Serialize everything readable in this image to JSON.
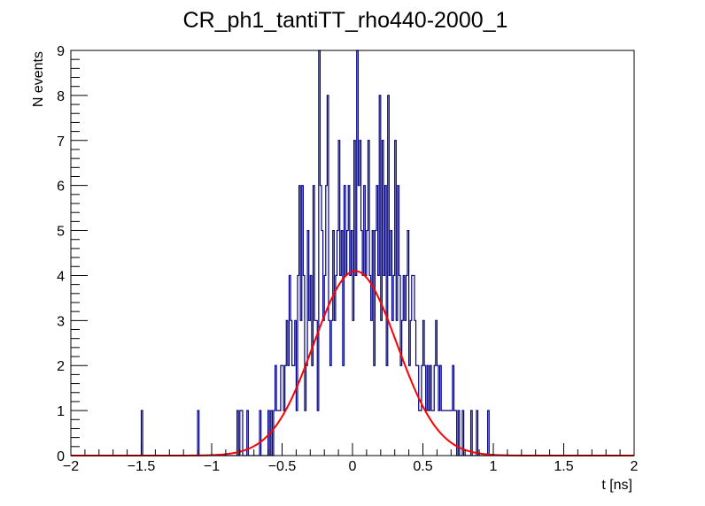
{
  "chart_data": {
    "type": "line",
    "title": "CR_ph1_tantiTT_rho440-2000_1",
    "xlabel": "t [ns]",
    "ylabel": "N events",
    "xlim": [
      -2,
      2
    ],
    "ylim": [
      0,
      9
    ],
    "x_ticks": [
      -2,
      -1.5,
      -1,
      -0.5,
      0,
      0.5,
      1,
      1.5,
      2
    ],
    "x_tick_labels": [
      "−2",
      "−1.5",
      "−1",
      "−0.5",
      "0",
      "0.5",
      "1",
      "1.5",
      "2"
    ],
    "y_ticks": [
      0,
      1,
      2,
      3,
      4,
      5,
      6,
      7,
      8,
      9
    ],
    "y_tick_labels": [
      "0",
      "1",
      "2",
      "3",
      "4",
      "5",
      "6",
      "7",
      "8",
      "9"
    ],
    "grid": false,
    "legend": "none",
    "series": [
      {
        "name": "histogram",
        "kind": "step",
        "color": "#000080",
        "bin_width": 0.01,
        "bins": [
          [
            -1.5,
            1
          ],
          [
            -1.1,
            1
          ],
          [
            -0.82,
            1
          ],
          [
            -0.8,
            1
          ],
          [
            -0.79,
            1
          ],
          [
            -0.75,
            1
          ],
          [
            -0.66,
            1
          ],
          [
            -0.6,
            1
          ],
          [
            -0.58,
            1
          ],
          [
            -0.56,
            1
          ],
          [
            -0.55,
            2
          ],
          [
            -0.54,
            1
          ],
          [
            -0.53,
            1
          ],
          [
            -0.52,
            1
          ],
          [
            -0.51,
            2
          ],
          [
            -0.5,
            2
          ],
          [
            -0.49,
            1
          ],
          [
            -0.48,
            2
          ],
          [
            -0.47,
            3
          ],
          [
            -0.46,
            2
          ],
          [
            -0.45,
            4
          ],
          [
            -0.44,
            3
          ],
          [
            -0.43,
            2
          ],
          [
            -0.42,
            2
          ],
          [
            -0.41,
            3
          ],
          [
            -0.4,
            1
          ],
          [
            -0.39,
            4
          ],
          [
            -0.38,
            6
          ],
          [
            -0.37,
            3
          ],
          [
            -0.36,
            6
          ],
          [
            -0.35,
            4
          ],
          [
            -0.34,
            1
          ],
          [
            -0.33,
            2
          ],
          [
            -0.32,
            5
          ],
          [
            -0.31,
            3
          ],
          [
            -0.3,
            4
          ],
          [
            -0.29,
            2
          ],
          [
            -0.28,
            6
          ],
          [
            -0.27,
            3
          ],
          [
            -0.26,
            3
          ],
          [
            -0.25,
            1
          ],
          [
            -0.24,
            9
          ],
          [
            -0.23,
            6
          ],
          [
            -0.22,
            5
          ],
          [
            -0.21,
            3
          ],
          [
            -0.2,
            4
          ],
          [
            -0.19,
            6
          ],
          [
            -0.18,
            8
          ],
          [
            -0.17,
            3
          ],
          [
            -0.16,
            2
          ],
          [
            -0.15,
            3
          ],
          [
            -0.14,
            5
          ],
          [
            -0.13,
            3
          ],
          [
            -0.12,
            4
          ],
          [
            -0.11,
            5
          ],
          [
            -0.1,
            7
          ],
          [
            -0.09,
            4
          ],
          [
            -0.08,
            5
          ],
          [
            -0.07,
            2
          ],
          [
            -0.06,
            6
          ],
          [
            -0.05,
            4
          ],
          [
            -0.04,
            5
          ],
          [
            -0.03,
            6
          ],
          [
            -0.02,
            4
          ],
          [
            -0.01,
            5
          ],
          [
            0.0,
            3
          ],
          [
            0.01,
            7
          ],
          [
            0.02,
            4
          ],
          [
            0.03,
            9
          ],
          [
            0.04,
            6
          ],
          [
            0.05,
            7
          ],
          [
            0.06,
            5
          ],
          [
            0.07,
            4
          ],
          [
            0.08,
            6
          ],
          [
            0.09,
            4
          ],
          [
            0.1,
            5
          ],
          [
            0.11,
            7
          ],
          [
            0.12,
            4
          ],
          [
            0.13,
            3
          ],
          [
            0.14,
            5
          ],
          [
            0.15,
            2
          ],
          [
            0.16,
            5
          ],
          [
            0.17,
            6
          ],
          [
            0.18,
            4
          ],
          [
            0.19,
            8
          ],
          [
            0.2,
            3
          ],
          [
            0.21,
            7
          ],
          [
            0.22,
            4
          ],
          [
            0.23,
            6
          ],
          [
            0.24,
            2
          ],
          [
            0.25,
            8
          ],
          [
            0.26,
            4
          ],
          [
            0.27,
            5
          ],
          [
            0.28,
            3
          ],
          [
            0.29,
            4
          ],
          [
            0.3,
            7
          ],
          [
            0.31,
            3
          ],
          [
            0.32,
            6
          ],
          [
            0.33,
            4
          ],
          [
            0.34,
            2
          ],
          [
            0.35,
            3
          ],
          [
            0.36,
            4
          ],
          [
            0.37,
            3
          ],
          [
            0.38,
            4
          ],
          [
            0.39,
            5
          ],
          [
            0.4,
            2
          ],
          [
            0.41,
            3
          ],
          [
            0.42,
            4
          ],
          [
            0.43,
            4
          ],
          [
            0.44,
            3
          ],
          [
            0.45,
            2
          ],
          [
            0.46,
            2
          ],
          [
            0.47,
            1
          ],
          [
            0.48,
            1
          ],
          [
            0.49,
            2
          ],
          [
            0.5,
            3
          ],
          [
            0.51,
            2
          ],
          [
            0.52,
            1
          ],
          [
            0.53,
            2
          ],
          [
            0.54,
            1
          ],
          [
            0.55,
            2
          ],
          [
            0.56,
            1
          ],
          [
            0.57,
            1
          ],
          [
            0.58,
            2
          ],
          [
            0.59,
            3
          ],
          [
            0.6,
            2
          ],
          [
            0.61,
            1
          ],
          [
            0.62,
            2
          ],
          [
            0.63,
            1
          ],
          [
            0.64,
            1
          ],
          [
            0.65,
            1
          ],
          [
            0.66,
            1
          ],
          [
            0.67,
            1
          ],
          [
            0.68,
            1
          ],
          [
            0.69,
            1
          ],
          [
            0.7,
            1
          ],
          [
            0.71,
            2
          ],
          [
            0.72,
            1
          ],
          [
            0.73,
            1
          ],
          [
            0.75,
            1
          ],
          [
            0.78,
            1
          ],
          [
            0.84,
            1
          ],
          [
            0.88,
            1
          ],
          [
            0.96,
            1
          ]
        ]
      },
      {
        "name": "gaussian-fit",
        "kind": "curve",
        "color": "#ff0000",
        "constant": 4.1,
        "mean": 0.02,
        "sigma": 0.295
      }
    ]
  }
}
